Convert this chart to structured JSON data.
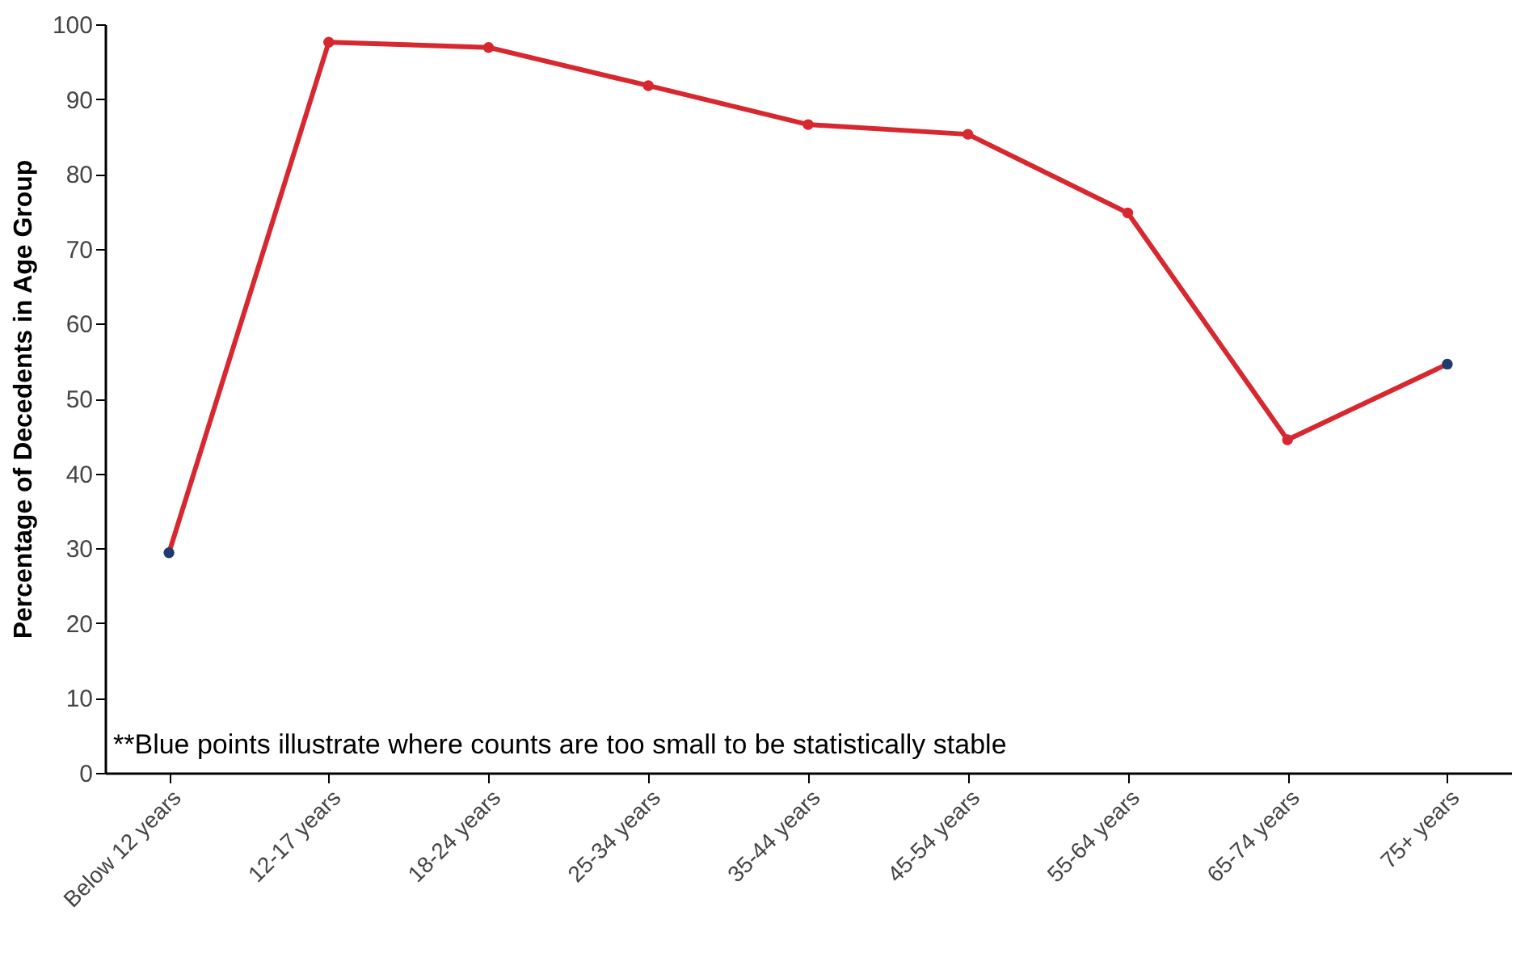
{
  "chart_data": {
    "type": "line",
    "ylabel": "Percentage of Decedents in Age Group",
    "categories": [
      "Below 12 years",
      "12-17 years",
      "18-24 years",
      "25-34 years",
      "35-44 years",
      "45-54 years",
      "55-64 years",
      "65-74 years",
      "75+ years"
    ],
    "series": [
      {
        "color": "#d7282f",
        "values": [
          29.4,
          97.6,
          96.9,
          91.8,
          86.6,
          85.3,
          74.8,
          44.5,
          54.6
        ],
        "colors": [
          "#1f3a6e",
          "#d7282f",
          "#d7282f",
          "#d7282f",
          "#d7282f",
          "#d7282f",
          "#d7282f",
          "#d7282f",
          "#1f3a6e"
        ]
      }
    ],
    "ylim": [
      0,
      100
    ],
    "yticks": [
      0,
      10,
      20,
      30,
      40,
      50,
      60,
      70,
      80,
      90,
      100
    ],
    "grid": false,
    "marker": "circle",
    "line_style": "solid",
    "annotations": [
      "**Blue points illustrate where counts are too small to be statistically stable"
    ]
  }
}
